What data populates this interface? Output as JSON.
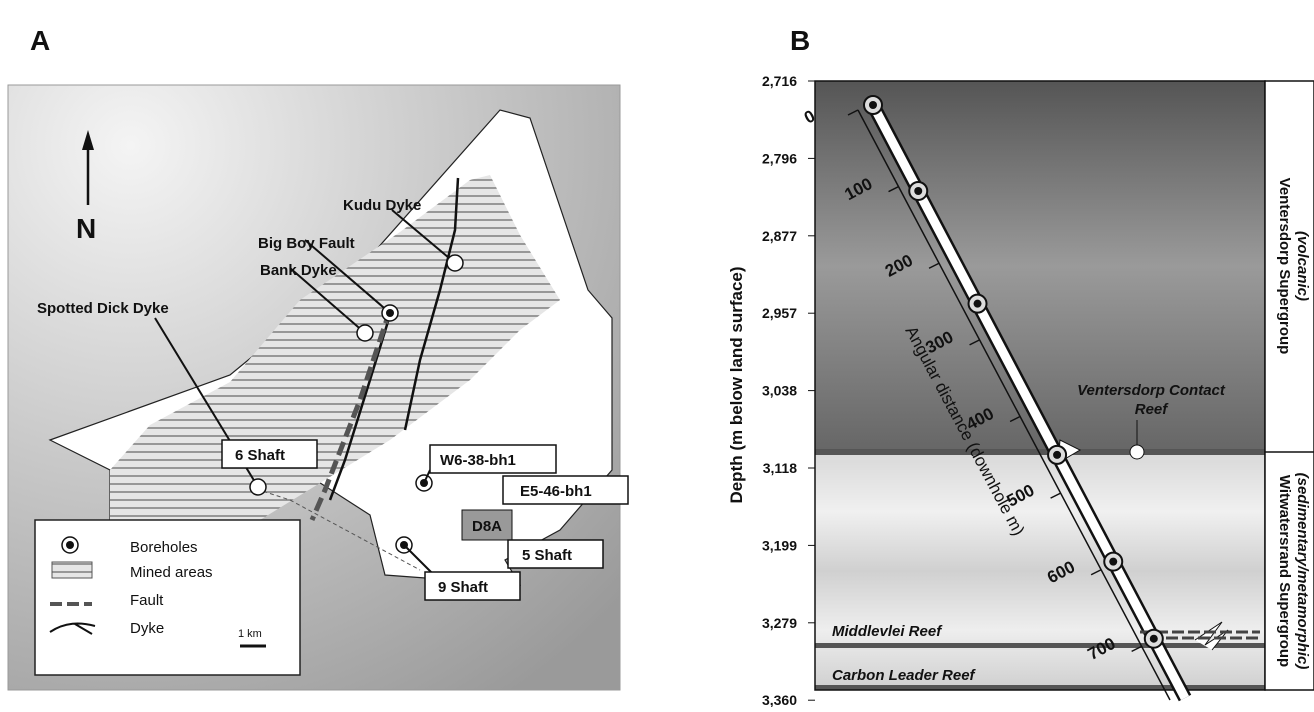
{
  "panels": [
    {
      "label": "A"
    },
    {
      "label": "B"
    }
  ],
  "map": {
    "north": "N",
    "features": [
      "Kudu Dyke",
      "Big Boy Fault",
      "Bank Dyke",
      "Spotted Dick Dyke"
    ],
    "boxes": [
      "6 Shaft",
      "W6-38-bh1",
      "E5-46-bh1",
      "D8A",
      "5 Shaft",
      "9 Shaft"
    ],
    "legend": [
      "Boreholes",
      "Mined areas",
      "Fault",
      "Dyke"
    ],
    "scale": "1 km"
  },
  "section": {
    "y_axis_label": "Depth (m below land surface)",
    "yticks": [
      "2,716",
      "2,796",
      "2,877",
      "2,957",
      "3,038",
      "3,118",
      "3,199",
      "3,279",
      "3,360"
    ],
    "distance_label": "Angular distance (downhole m)",
    "distance_ticks": [
      "0",
      "100",
      "200",
      "300",
      "400",
      "500",
      "600",
      "700"
    ],
    "reefs": [
      [
        "Ventersdorp Contact",
        "Reef"
      ],
      [
        "Middlevlei Reef"
      ],
      [
        "Carbon Leader Reef"
      ]
    ],
    "units": [
      {
        "name": "Ventersdorp Supergroup",
        "sub": "(volcanic)"
      },
      {
        "name": "Witwatersrand Supergroup",
        "sub": "(sedimentary/metamorphic)"
      }
    ]
  }
}
